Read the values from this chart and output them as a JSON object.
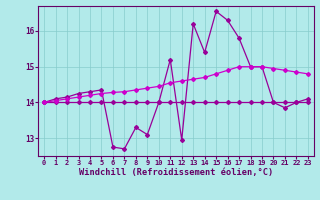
{
  "title": "",
  "xlabel": "Windchill (Refroidissement éolien,°C)",
  "ylabel": "",
  "bg_color": "#b2eaea",
  "line1_color": "#990099",
  "line2_color": "#cc00cc",
  "grid_color": "#88cccc",
  "x": [
    0,
    1,
    2,
    3,
    4,
    5,
    6,
    7,
    8,
    9,
    10,
    11,
    12,
    13,
    14,
    15,
    16,
    17,
    18,
    19,
    20,
    21,
    22,
    23
  ],
  "y_jagged": [
    14.0,
    14.1,
    14.15,
    14.25,
    14.3,
    14.35,
    12.75,
    12.7,
    13.3,
    13.1,
    14.0,
    15.2,
    12.95,
    16.2,
    15.4,
    16.55,
    16.3,
    15.8,
    15.0,
    15.0,
    14.0,
    13.85,
    14.0,
    14.1
  ],
  "y_trend": [
    14.0,
    14.0,
    14.0,
    14.0,
    14.0,
    14.0,
    14.0,
    14.0,
    14.0,
    14.0,
    14.0,
    14.0,
    14.0,
    14.0,
    14.0,
    14.0,
    14.0,
    14.0,
    14.0,
    14.0,
    14.0,
    14.0,
    14.0,
    14.0
  ],
  "y_rising": [
    14.0,
    14.05,
    14.1,
    14.15,
    14.2,
    14.25,
    14.28,
    14.3,
    14.35,
    14.4,
    14.45,
    14.55,
    14.6,
    14.65,
    14.7,
    14.8,
    14.9,
    15.0,
    15.0,
    15.0,
    14.95,
    14.9,
    14.85,
    14.8
  ],
  "ylim": [
    12.5,
    16.7
  ],
  "xlim": [
    -0.5,
    23.5
  ],
  "yticks": [
    13,
    14,
    15,
    16
  ],
  "xticks": [
    0,
    1,
    2,
    3,
    4,
    5,
    6,
    7,
    8,
    9,
    10,
    11,
    12,
    13,
    14,
    15,
    16,
    17,
    18,
    19,
    20,
    21,
    22,
    23
  ],
  "tick_color": "#660066",
  "tick_fontsize": 5.0,
  "xlabel_fontsize": 6.2,
  "marker": "D",
  "markersize": 2.0,
  "linewidth": 0.9
}
